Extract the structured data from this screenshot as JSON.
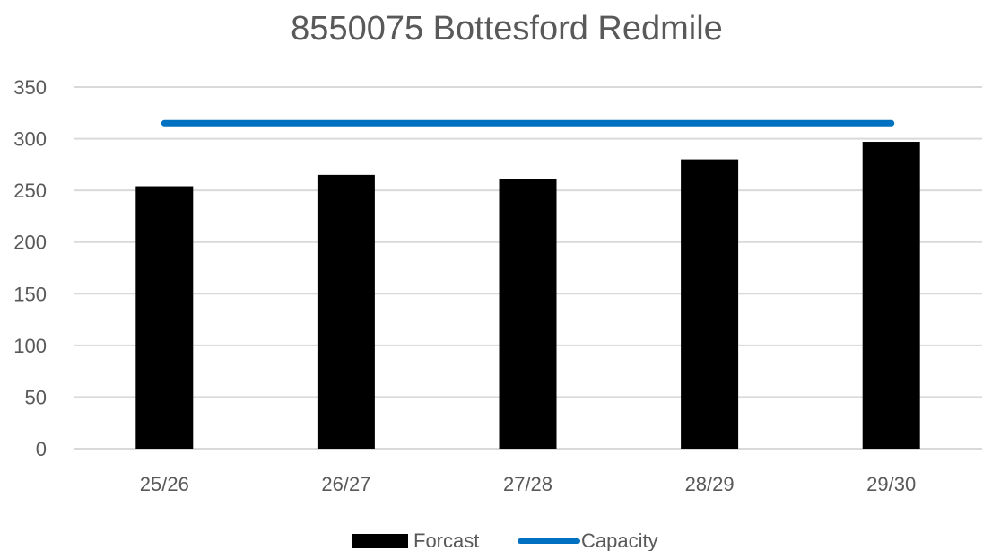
{
  "chart_data": {
    "type": "bar",
    "title": "8550075 Bottesford Redmile",
    "categories": [
      "25/26",
      "26/27",
      "27/28",
      "28/29",
      "29/30"
    ],
    "series": [
      {
        "name": "Forcast",
        "type": "bar",
        "color": "#000000",
        "values": [
          254,
          265,
          261,
          280,
          297
        ]
      },
      {
        "name": "Capacity",
        "type": "line",
        "color": "#0070C0",
        "values": [
          315,
          315,
          315,
          315,
          315
        ]
      }
    ],
    "ylim": [
      0,
      350
    ],
    "yticks": [
      0,
      50,
      100,
      150,
      200,
      250,
      300,
      350
    ],
    "grid": true,
    "legend_position": "bottom",
    "xlabel": "",
    "ylabel": ""
  }
}
